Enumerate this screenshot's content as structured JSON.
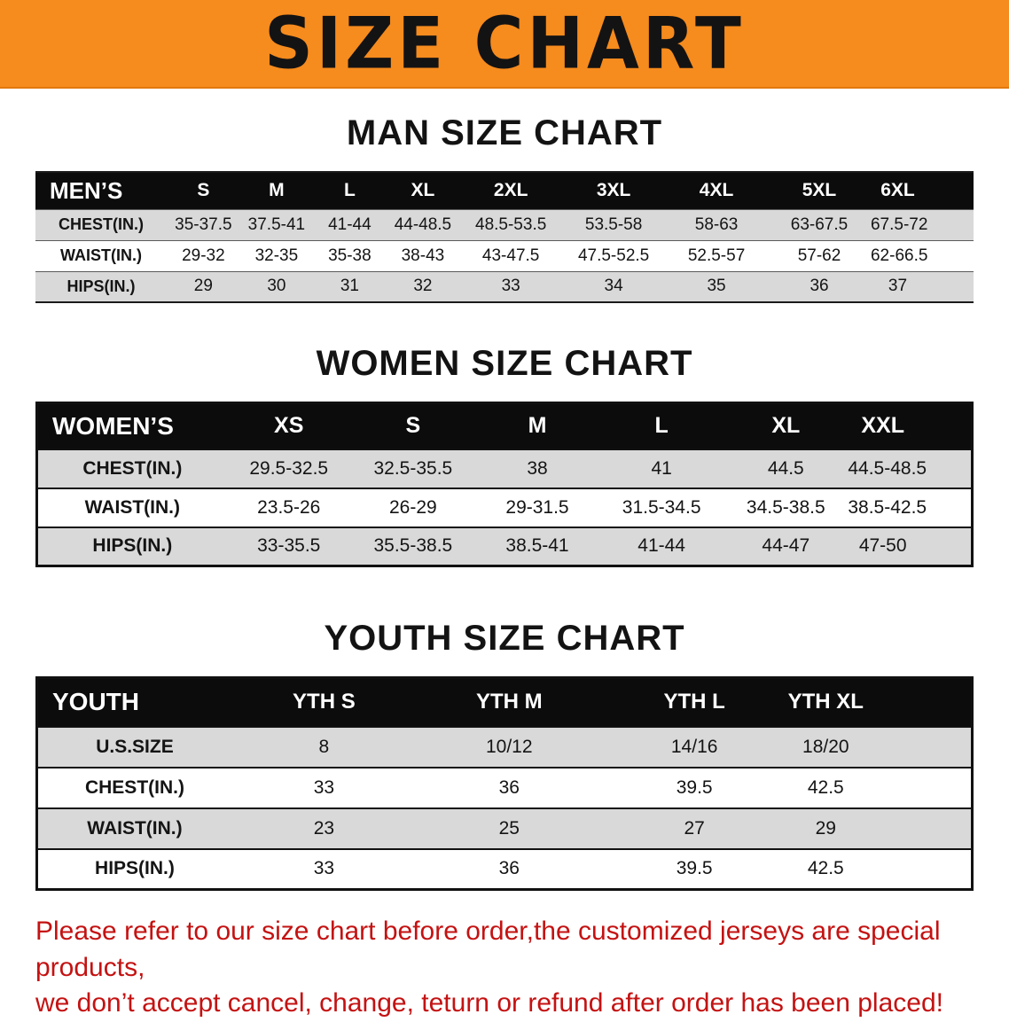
{
  "banner": {
    "title": "SIZE CHART"
  },
  "sections": {
    "men": {
      "heading": "MAN SIZE CHART",
      "table": {
        "header": [
          "MEN’S",
          "S",
          "M",
          "L",
          "XL",
          "2XL",
          "3XL",
          "4XL",
          "5XL",
          "6XL"
        ],
        "rows": [
          [
            "CHEST(IN.)",
            "35-37.5",
            "37.5-41",
            "41-44",
            "44-48.5",
            "48.5-53.5",
            "53.5-58",
            "58-63",
            "63-67.5",
            "67.5-72"
          ],
          [
            "WAIST(IN.)",
            "29-32",
            "32-35",
            "35-38",
            "38-43",
            "43-47.5",
            "47.5-52.5",
            "52.5-57",
            "57-62",
            "62-66.5"
          ],
          [
            "HIPS(IN.)",
            "29",
            "30",
            "31",
            "32",
            "33",
            "34",
            "35",
            "36",
            "37"
          ]
        ]
      }
    },
    "women": {
      "heading": "WOMEN SIZE CHART",
      "table": {
        "header": [
          "WOMEN’S",
          "XS",
          "S",
          "M",
          "L",
          "XL",
          "XXL"
        ],
        "rows": [
          [
            "CHEST(IN.)",
            "29.5-32.5",
            "32.5-35.5",
            "38",
            "41",
            "44.5",
            "44.5-48.5"
          ],
          [
            "WAIST(IN.)",
            "23.5-26",
            "26-29",
            "29-31.5",
            "31.5-34.5",
            "34.5-38.5",
            "38.5-42.5"
          ],
          [
            "HIPS(IN.)",
            "33-35.5",
            "35.5-38.5",
            "38.5-41",
            "41-44",
            "44-47",
            "47-50"
          ]
        ]
      }
    },
    "youth": {
      "heading": "YOUTH SIZE CHART",
      "table": {
        "header": [
          "YOUTH",
          "YTH S",
          "YTH M",
          "YTH L",
          "YTH XL"
        ],
        "rows": [
          [
            "U.S.SIZE",
            "8",
            "10/12",
            "14/16",
            "18/20"
          ],
          [
            "CHEST(IN.)",
            "33",
            "36",
            "39.5",
            "42.5"
          ],
          [
            "WAIST(IN.)",
            "23",
            "25",
            "27",
            "29"
          ],
          [
            "HIPS(IN.)",
            "33",
            "36",
            "39.5",
            "42.5"
          ]
        ]
      }
    }
  },
  "note": {
    "line1": "Please refer to our size chart before order,the customized jerseys are special products,",
    "line2": "we don’t accept cancel, change, teturn or refund after order has been placed!"
  },
  "colors": {
    "banner_orange": "#f68b1e",
    "table_header_black": "#0c0c0c",
    "row_gray": "#d9d9d9",
    "note_red": "#c41212"
  }
}
